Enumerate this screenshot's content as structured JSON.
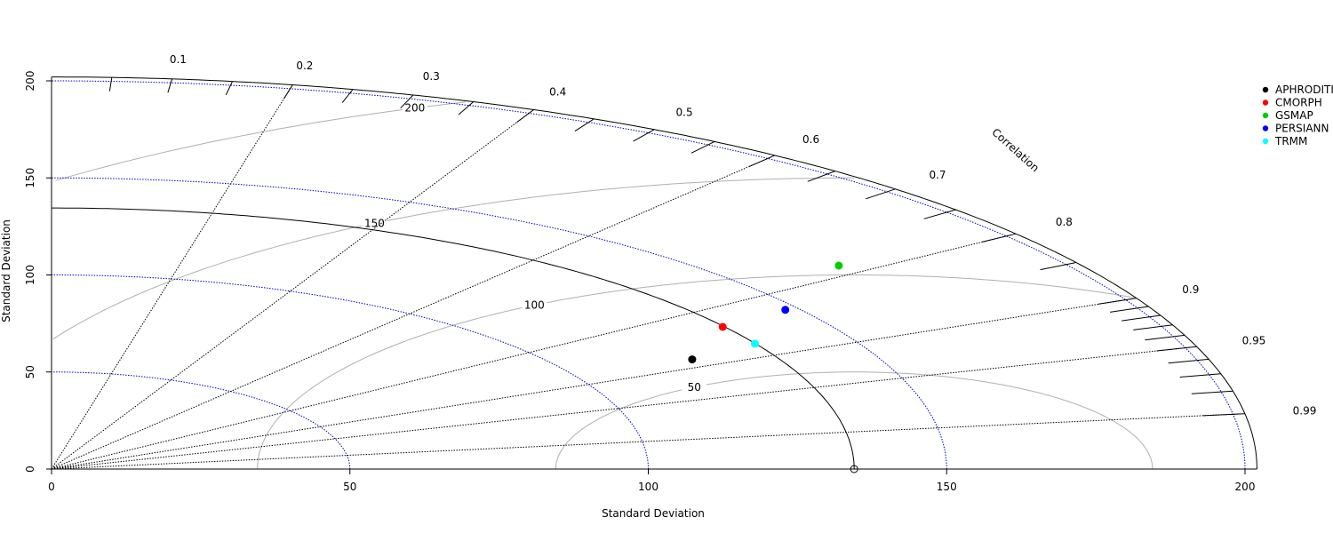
{
  "chart_data": {
    "type": "taylor-diagram",
    "xlabel": "Standard Deviation",
    "ylabel": "Standard Deviation",
    "arc_label": "Correlation",
    "xlim": [
      0,
      202
    ],
    "ylim": [
      0,
      202
    ],
    "sd_ticks": [
      "0",
      "50",
      "100",
      "150",
      "200"
    ],
    "sd_tick_values": [
      0,
      50,
      100,
      150,
      200
    ],
    "correlation_ticks": [
      "0.1",
      "0.2",
      "0.3",
      "0.4",
      "0.5",
      "0.6",
      "0.7",
      "0.8",
      "0.9",
      "0.95",
      "0.99"
    ],
    "correlation_tick_values": [
      0.1,
      0.2,
      0.3,
      0.4,
      0.5,
      0.6,
      0.7,
      0.8,
      0.9,
      0.95,
      0.99
    ],
    "correlation_rays": [
      0.2,
      0.4,
      0.6,
      0.8,
      0.9,
      0.95,
      0.99
    ],
    "sd_contours": [
      50,
      100,
      150,
      200
    ],
    "reference_sd": 134.5,
    "rmsd_contours": [
      50,
      100,
      150,
      200
    ],
    "rmsd_labels": [
      "50",
      "100",
      "150",
      "200"
    ],
    "series": [
      {
        "name": "APHRODITI",
        "color": "#000000",
        "sd": 121.3,
        "corr": 0.885
      },
      {
        "name": "CMORPH",
        "color": "#ff0000",
        "sd": 134.2,
        "corr": 0.838
      },
      {
        "name": "GSMAP",
        "color": "#00cd00",
        "sd": 168.5,
        "corr": 0.783
      },
      {
        "name": "PERSIANN",
        "color": "#0000ff",
        "sd": 147.8,
        "corr": 0.832
      },
      {
        "name": "TRMM",
        "color": "#00ffff",
        "sd": 134.4,
        "corr": 0.877
      }
    ],
    "legend": "top-right"
  }
}
